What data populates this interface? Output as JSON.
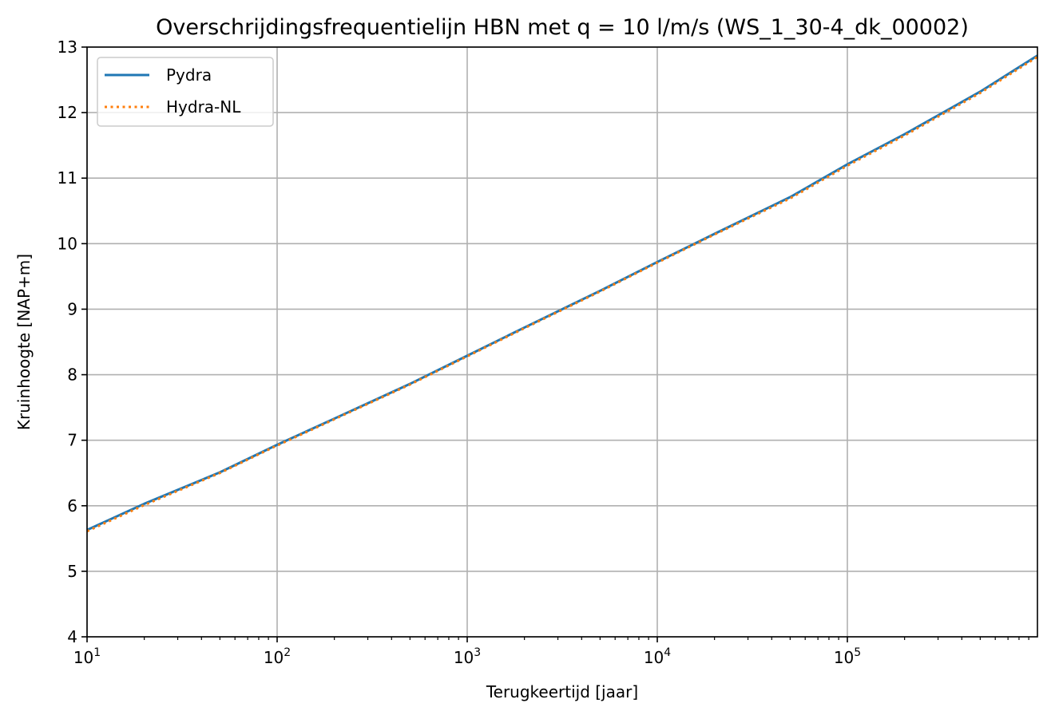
{
  "chart_data": {
    "type": "line",
    "title": "Overschrijdingsfrequentielijn HBN met q = 10 l/m/s (WS_1_30-4_dk_00002)",
    "xlabel": "Terugkeertijd [jaar]",
    "ylabel": "Kruinhoogte [NAP+m]",
    "xscale": "log",
    "xlim": [
      10,
      1000000
    ],
    "ylim": [
      4,
      13
    ],
    "xticks": [
      {
        "value": 10,
        "base": "10",
        "exp": "1"
      },
      {
        "value": 100,
        "base": "10",
        "exp": "2"
      },
      {
        "value": 1000,
        "base": "10",
        "exp": "3"
      },
      {
        "value": 10000,
        "base": "10",
        "exp": "4"
      },
      {
        "value": 100000,
        "base": "10",
        "exp": "5"
      }
    ],
    "yticks": [
      "4",
      "5",
      "6",
      "7",
      "8",
      "9",
      "10",
      "11",
      "12",
      "13"
    ],
    "grid": true,
    "legend_position": "upper left",
    "series": [
      {
        "name": "Pydra",
        "color": "#1f77b4",
        "style": "solid",
        "x": [
          10,
          20,
          50,
          100,
          200,
          500,
          1000,
          2000,
          5000,
          10000,
          20000,
          50000,
          100000,
          200000,
          500000,
          1000000
        ],
        "y": [
          5.63,
          6.03,
          6.51,
          6.93,
          7.33,
          7.86,
          8.29,
          8.72,
          9.28,
          9.72,
          10.15,
          10.71,
          11.21,
          11.67,
          12.32,
          12.87
        ]
      },
      {
        "name": "Hydra-NL",
        "color": "#ff7f0e",
        "style": "dotted",
        "x": [
          10,
          20,
          50,
          100,
          200,
          500,
          1000,
          2000,
          5000,
          10000,
          20000,
          50000,
          100000,
          200000,
          500000,
          1000000
        ],
        "y": [
          5.61,
          6.01,
          6.5,
          6.92,
          7.32,
          7.85,
          8.28,
          8.71,
          9.27,
          9.71,
          10.14,
          10.69,
          11.19,
          11.65,
          12.3,
          12.85
        ]
      }
    ]
  }
}
